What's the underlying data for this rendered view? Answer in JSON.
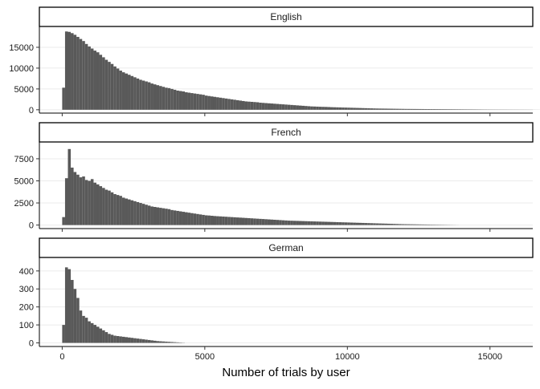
{
  "chart_data": {
    "type": "bar",
    "subtype": "faceted-histogram",
    "xlabel": "Number of trials by user",
    "ylabel": "",
    "xlim": [
      -800,
      16500
    ],
    "x_ticks": [
      0,
      5000,
      10000,
      15000
    ],
    "x_tick_labels": [
      "0",
      "5000",
      "10000",
      "15000"
    ],
    "bin_start": 0,
    "bin_width": 100,
    "grid": true,
    "bar_color": "#595959",
    "strip_fill": "#ffffff",
    "strip_border": "#000000",
    "facets": [
      {
        "label": "English",
        "ylim": [
          -800,
          20000
        ],
        "y_ticks": [
          0,
          5000,
          10000,
          15000
        ],
        "y_tick_labels": [
          "0",
          "5000",
          "10000",
          "15000"
        ],
        "values": [
          5300,
          18800,
          18700,
          18400,
          18000,
          17500,
          17000,
          16500,
          15800,
          15200,
          14700,
          14200,
          13800,
          13200,
          12600,
          12000,
          11500,
          11000,
          10400,
          9900,
          9400,
          9000,
          8700,
          8400,
          8100,
          7800,
          7500,
          7200,
          7000,
          6800,
          6600,
          6300,
          6100,
          5900,
          5700,
          5500,
          5300,
          5200,
          5000,
          4800,
          4600,
          4500,
          4400,
          4200,
          4100,
          4000,
          3900,
          3800,
          3700,
          3600,
          3400,
          3300,
          3200,
          3100,
          3000,
          2900,
          2800,
          2700,
          2600,
          2500,
          2400,
          2300,
          2200,
          2100,
          2000,
          1950,
          1900,
          1850,
          1800,
          1700,
          1650,
          1600,
          1550,
          1500,
          1450,
          1400,
          1350,
          1300,
          1250,
          1200,
          1150,
          1100,
          1050,
          1000,
          950,
          900,
          850,
          800,
          780,
          750,
          720,
          700,
          680,
          650,
          620,
          600,
          580,
          560,
          540,
          520,
          500,
          480,
          460,
          440,
          420,
          400,
          380,
          360,
          340,
          320,
          300,
          290,
          280,
          270,
          260,
          250,
          240,
          230,
          220,
          210,
          200,
          195,
          190,
          185,
          180,
          175,
          170,
          165,
          160,
          155,
          150,
          145,
          140,
          135,
          130,
          125,
          120,
          115,
          110,
          105,
          100,
          95,
          90,
          85,
          80,
          75,
          70,
          65,
          60,
          55,
          50,
          48,
          46,
          44,
          42,
          40,
          38,
          36,
          34,
          32,
          30,
          28,
          26,
          24,
          22,
          20,
          18,
          16,
          14,
          12,
          10,
          8,
          6,
          4,
          2
        ]
      },
      {
        "label": "French",
        "ylim": [
          -400,
          9400
        ],
        "y_ticks": [
          0,
          2500,
          5000,
          7500
        ],
        "y_tick_labels": [
          "0",
          "2500",
          "5000",
          "7500"
        ],
        "values": [
          900,
          5300,
          8600,
          6500,
          6000,
          5700,
          5400,
          5500,
          5100,
          5000,
          5200,
          4800,
          4600,
          4400,
          4200,
          4000,
          3900,
          3700,
          3500,
          3400,
          3300,
          3100,
          3000,
          2900,
          2800,
          2700,
          2600,
          2500,
          2400,
          2300,
          2200,
          2100,
          2050,
          2000,
          1950,
          1900,
          1850,
          1800,
          1700,
          1650,
          1600,
          1550,
          1500,
          1450,
          1400,
          1350,
          1300,
          1250,
          1200,
          1150,
          1100,
          1080,
          1050,
          1020,
          1000,
          980,
          960,
          940,
          920,
          900,
          880,
          860,
          840,
          820,
          800,
          780,
          760,
          740,
          720,
          700,
          680,
          660,
          640,
          620,
          600,
          580,
          560,
          540,
          520,
          500,
          490,
          480,
          470,
          460,
          450,
          440,
          430,
          420,
          410,
          400,
          390,
          380,
          370,
          360,
          350,
          340,
          330,
          320,
          310,
          300,
          290,
          280,
          270,
          260,
          250,
          240,
          230,
          220,
          210,
          200,
          190,
          180,
          170,
          160,
          150,
          140,
          130,
          120,
          110,
          100,
          95,
          90,
          85,
          80,
          75,
          70,
          65,
          60,
          55,
          50,
          45,
          40,
          35,
          30,
          25,
          20,
          15,
          10,
          5
        ]
      },
      {
        "label": "German",
        "ylim": [
          -20,
          475
        ],
        "y_ticks": [
          0,
          100,
          200,
          300,
          400
        ],
        "y_tick_labels": [
          "0",
          "100",
          "200",
          "300",
          "400"
        ],
        "values": [
          100,
          420,
          410,
          350,
          300,
          250,
          180,
          150,
          140,
          120,
          110,
          100,
          90,
          80,
          70,
          60,
          50,
          45,
          40,
          38,
          36,
          34,
          32,
          30,
          28,
          26,
          24,
          22,
          20,
          18,
          16,
          14,
          12,
          10,
          9,
          8,
          7,
          6,
          5,
          4,
          3,
          2,
          1
        ]
      }
    ]
  }
}
